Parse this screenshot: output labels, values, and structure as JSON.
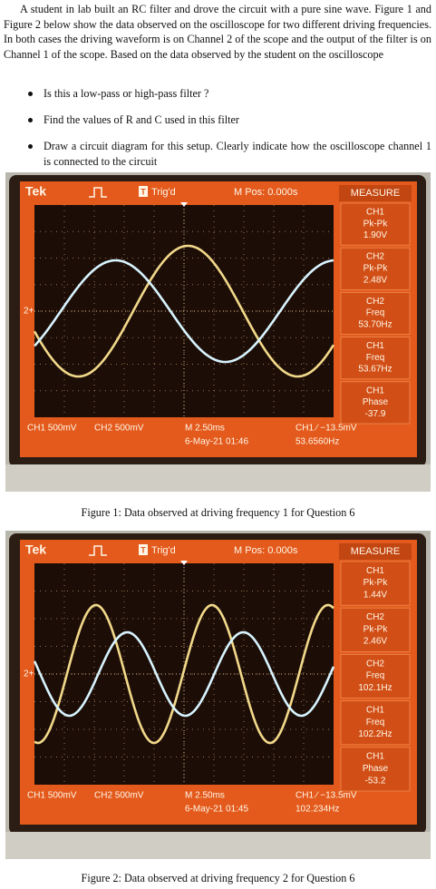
{
  "intro": "A student in lab built an RC filter and drove the circuit with a pure sine wave. Figure 1 and Figure 2 below show the data observed on the oscilloscope for two different driving frequencies. In both cases the driving waveform is on Channel 2 of the scope and the output of the filter is on Channel 1 of the scope. Based on the data observed by the student on the oscilloscope",
  "questions": [
    "Is this a low-pass or high-pass filter ?",
    "Find the values of R and C used in this filter",
    "Draw a circuit diagram for this setup. Clearly indicate how the oscilloscope channel 1 is connected to the circuit"
  ],
  "figures": [
    {
      "screen": {
        "brand": "Tek",
        "trigger_icon": "T",
        "trigger": "Trig'd",
        "position": "M Pos: 0.000s",
        "measure_title": "MEASURE",
        "ground_marker": "2+",
        "measurements": [
          {
            "channel": "CH1",
            "label": "Pk-Pk",
            "value": "1.90V"
          },
          {
            "channel": "CH2",
            "label": "Pk-Pk",
            "value": "2.48V"
          },
          {
            "channel": "CH2",
            "label": "Freq",
            "value": "53.70Hz"
          },
          {
            "channel": "CH1",
            "label": "Freq",
            "value": "53.67Hz"
          },
          {
            "channel": "CH1",
            "label": "Phase",
            "value": "-37.9"
          }
        ],
        "ch1_scale": "CH1 500mV",
        "ch2_scale": "CH2 500mV",
        "timebase": "M 2.50ms",
        "datetime": "6-May-21 01:46",
        "trigger_info": "CH1 ∕ −13.5mV",
        "frequency": "53.6560Hz"
      },
      "caption": "Figure 1: Data observed at driving frequency 1 for Question 6"
    },
    {
      "screen": {
        "brand": "Tek",
        "trigger_icon": "T",
        "trigger": "Trig'd",
        "position": "M Pos: 0.000s",
        "measure_title": "MEASURE",
        "ground_marker": "2+",
        "measurements": [
          {
            "channel": "CH1",
            "label": "Pk-Pk",
            "value": "1.44V"
          },
          {
            "channel": "CH2",
            "label": "Pk-Pk",
            "value": "2.46V"
          },
          {
            "channel": "CH2",
            "label": "Freq",
            "value": "102.1Hz"
          },
          {
            "channel": "CH1",
            "label": "Freq",
            "value": "102.2Hz"
          },
          {
            "channel": "CH1",
            "label": "Phase",
            "value": "-53.2"
          }
        ],
        "ch1_scale": "CH1 500mV",
        "ch2_scale": "CH2 500mV",
        "timebase": "M 2.50ms",
        "datetime": "6-May-21 01:45",
        "trigger_info": "CH1 ∕ −13.5mV",
        "frequency": "102.234Hz"
      },
      "caption": "Figure 2: Data observed at driving frequency 2 for Question 6"
    }
  ]
}
